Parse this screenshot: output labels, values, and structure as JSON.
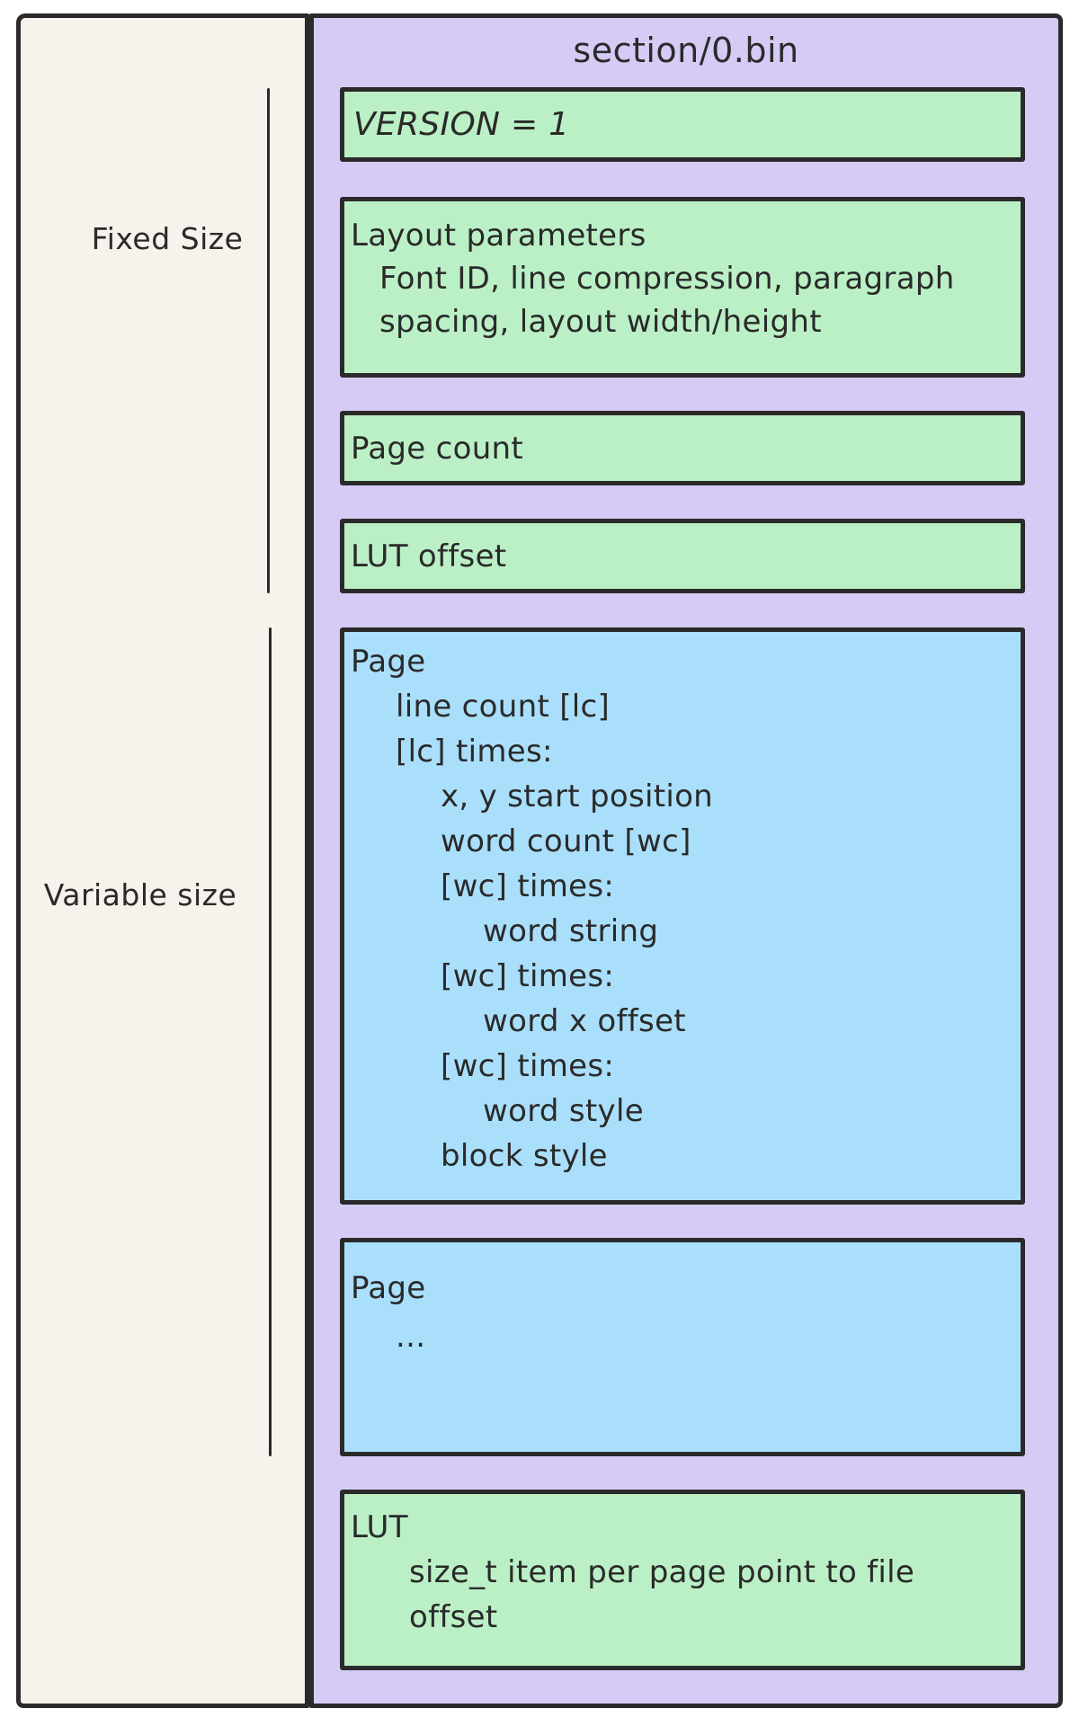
{
  "colors": {
    "cream": "#f7f2ec",
    "purple": "#d5cbf5",
    "green": "#bbf0c6",
    "blue": "#aadffb",
    "stroke": "#2a2a2a",
    "page-bg": "#ffffff"
  },
  "left_panel": {
    "fixed_size_label": "Fixed Size",
    "variable_size_label": "Variable size"
  },
  "file_panel": {
    "title": "section/0.bin",
    "version_box": {
      "line": "VERSION = 1"
    },
    "layout_box": {
      "lines": [
        "Layout parameters",
        "Font ID, line compression, paragraph",
        "spacing, layout width/height"
      ]
    },
    "page_count_box": {
      "line": "Page count"
    },
    "lut_offset_box": {
      "line": "LUT offset"
    },
    "page_box": {
      "lines": [
        "Page",
        "line count [lc]",
        "[lc] times:",
        "x, y start position",
        "word count [wc]",
        "[wc] times:",
        "word string",
        "[wc] times:",
        "word x offset",
        "[wc] times:",
        "word style",
        "block style"
      ]
    },
    "page_box_2": {
      "lines": [
        "Page",
        "..."
      ]
    },
    "lut_box": {
      "lines": [
        "LUT",
        "size_t item per page point to file",
        "offset"
      ]
    }
  }
}
